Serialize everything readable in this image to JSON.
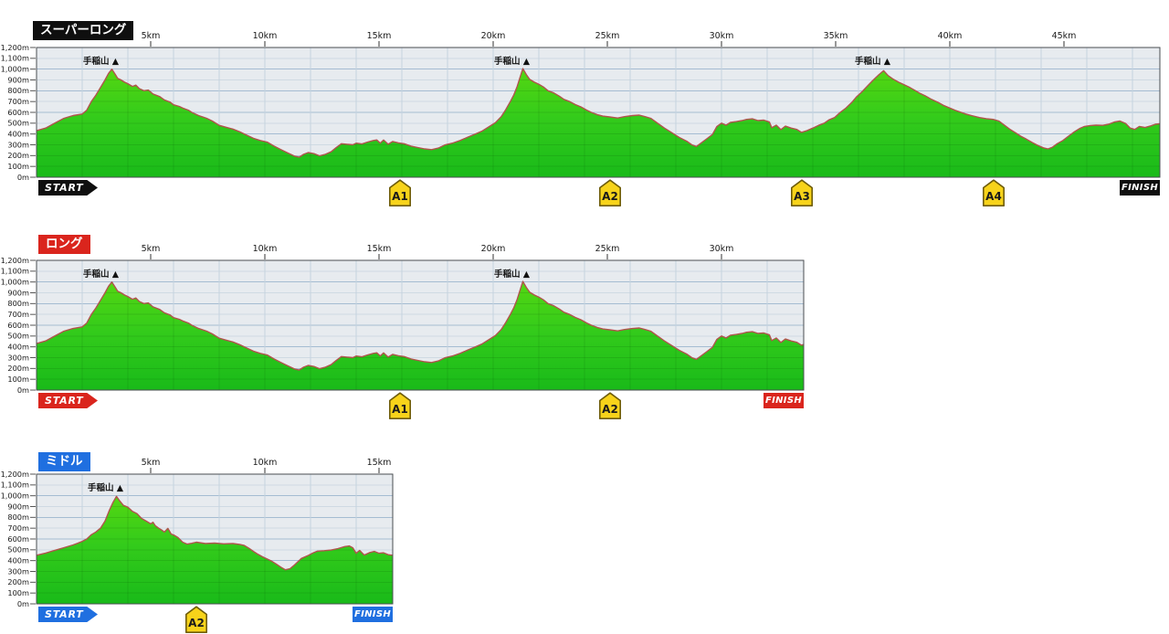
{
  "shared": {
    "start_label": "START",
    "finish_label": "FINISH",
    "y_axis_labels": [
      "1,200m",
      "1,100m",
      "1,000m",
      "900m",
      "800m",
      "700m",
      "600m",
      "500m",
      "400m",
      "300m",
      "200m",
      "100m",
      "0m"
    ],
    "y_unit": "m",
    "colors": {
      "page_bg": "#ffffff",
      "plot_bg": "#e7ebef",
      "grid_minor": "#cfdae3",
      "grid_major": "#a5bcd2",
      "grid_vertical": "#c4d3df",
      "plot_border": "#4a4e52",
      "area_top": "#62dc0e",
      "area_mid": "#33cb1b",
      "area_bottom": "#19ba19",
      "terrain_line": "#b0544c",
      "aid_fill": "#f7d31a",
      "aid_border": "#6e5c0a",
      "tick_text": "#1a1a1a"
    }
  },
  "profiles": {
    "super_long": [
      [
        0,
        430
      ],
      [
        0.4,
        455
      ],
      [
        0.8,
        500
      ],
      [
        1.2,
        545
      ],
      [
        1.6,
        570
      ],
      [
        2,
        585
      ],
      [
        2.2,
        620
      ],
      [
        2.4,
        700
      ],
      [
        2.6,
        760
      ],
      [
        2.8,
        830
      ],
      [
        3,
        900
      ],
      [
        3.15,
        960
      ],
      [
        3.3,
        1000
      ],
      [
        3.45,
        950
      ],
      [
        3.55,
        915
      ],
      [
        3.7,
        900
      ],
      [
        3.85,
        880
      ],
      [
        4,
        865
      ],
      [
        4.2,
        840
      ],
      [
        4.35,
        852
      ],
      [
        4.5,
        820
      ],
      [
        4.7,
        800
      ],
      [
        4.9,
        806
      ],
      [
        5.1,
        770
      ],
      [
        5.4,
        745
      ],
      [
        5.6,
        715
      ],
      [
        5.85,
        695
      ],
      [
        6,
        670
      ],
      [
        6.25,
        655
      ],
      [
        6.4,
        640
      ],
      [
        6.65,
        620
      ],
      [
        6.8,
        600
      ],
      [
        7.1,
        570
      ],
      [
        7.45,
        545
      ],
      [
        7.7,
        520
      ],
      [
        8,
        480
      ],
      [
        8.3,
        462
      ],
      [
        8.6,
        445
      ],
      [
        8.9,
        420
      ],
      [
        9.2,
        390
      ],
      [
        9.5,
        360
      ],
      [
        9.8,
        340
      ],
      [
        10.1,
        325
      ],
      [
        10.4,
        288
      ],
      [
        10.7,
        255
      ],
      [
        11,
        225
      ],
      [
        11.3,
        195
      ],
      [
        11.5,
        185
      ],
      [
        11.7,
        212
      ],
      [
        11.9,
        228
      ],
      [
        12.15,
        218
      ],
      [
        12.4,
        198
      ],
      [
        12.65,
        212
      ],
      [
        12.9,
        235
      ],
      [
        13.1,
        270
      ],
      [
        13.35,
        310
      ],
      [
        13.6,
        305
      ],
      [
        13.85,
        300
      ],
      [
        14,
        315
      ],
      [
        14.25,
        308
      ],
      [
        14.5,
        325
      ],
      [
        14.75,
        340
      ],
      [
        14.9,
        345
      ],
      [
        15.05,
        315
      ],
      [
        15.2,
        345
      ],
      [
        15.4,
        305
      ],
      [
        15.6,
        330
      ],
      [
        15.85,
        318
      ],
      [
        16.1,
        310
      ],
      [
        16.4,
        288
      ],
      [
        16.7,
        275
      ],
      [
        17,
        262
      ],
      [
        17.3,
        255
      ],
      [
        17.6,
        270
      ],
      [
        17.9,
        300
      ],
      [
        18.25,
        318
      ],
      [
        18.55,
        340
      ],
      [
        18.9,
        372
      ],
      [
        19.2,
        398
      ],
      [
        19.5,
        425
      ],
      [
        19.8,
        465
      ],
      [
        20.1,
        505
      ],
      [
        20.35,
        560
      ],
      [
        20.55,
        625
      ],
      [
        20.75,
        700
      ],
      [
        20.9,
        760
      ],
      [
        21.05,
        840
      ],
      [
        21.2,
        940
      ],
      [
        21.3,
        1005
      ],
      [
        21.45,
        950
      ],
      [
        21.6,
        905
      ],
      [
        21.8,
        880
      ],
      [
        22,
        860
      ],
      [
        22.2,
        835
      ],
      [
        22.4,
        800
      ],
      [
        22.65,
        780
      ],
      [
        22.9,
        750
      ],
      [
        23.1,
        720
      ],
      [
        23.35,
        700
      ],
      [
        23.6,
        672
      ],
      [
        23.85,
        650
      ],
      [
        24.1,
        620
      ],
      [
        24.3,
        600
      ],
      [
        24.55,
        580
      ],
      [
        24.8,
        565
      ],
      [
        25.1,
        558
      ],
      [
        25.45,
        548
      ],
      [
        25.75,
        560
      ],
      [
        26.1,
        570
      ],
      [
        26.4,
        575
      ],
      [
        26.65,
        560
      ],
      [
        26.9,
        545
      ],
      [
        27.2,
        500
      ],
      [
        27.5,
        455
      ],
      [
        27.85,
        408
      ],
      [
        28.15,
        368
      ],
      [
        28.5,
        330
      ],
      [
        28.7,
        300
      ],
      [
        28.9,
        285
      ],
      [
        29.1,
        315
      ],
      [
        29.35,
        355
      ],
      [
        29.6,
        395
      ],
      [
        29.8,
        470
      ],
      [
        30,
        500
      ],
      [
        30.2,
        482
      ],
      [
        30.4,
        508
      ],
      [
        30.65,
        515
      ],
      [
        30.9,
        524
      ],
      [
        31.1,
        535
      ],
      [
        31.35,
        540
      ],
      [
        31.6,
        524
      ],
      [
        31.85,
        528
      ],
      [
        32.1,
        510
      ],
      [
        32.2,
        458
      ],
      [
        32.4,
        482
      ],
      [
        32.6,
        440
      ],
      [
        32.8,
        472
      ],
      [
        33.05,
        455
      ],
      [
        33.3,
        442
      ],
      [
        33.5,
        415
      ],
      [
        33.75,
        432
      ],
      [
        34,
        455
      ],
      [
        34.25,
        480
      ],
      [
        34.5,
        500
      ],
      [
        34.7,
        530
      ],
      [
        34.95,
        552
      ],
      [
        35.2,
        600
      ],
      [
        35.45,
        640
      ],
      [
        35.7,
        690
      ],
      [
        35.9,
        740
      ],
      [
        36.15,
        790
      ],
      [
        36.4,
        845
      ],
      [
        36.65,
        900
      ],
      [
        36.9,
        950
      ],
      [
        37.1,
        985
      ],
      [
        37.3,
        940
      ],
      [
        37.5,
        910
      ],
      [
        37.75,
        880
      ],
      [
        38,
        855
      ],
      [
        38.25,
        830
      ],
      [
        38.5,
        800
      ],
      [
        38.7,
        775
      ],
      [
        38.95,
        750
      ],
      [
        39.2,
        720
      ],
      [
        39.5,
        690
      ],
      [
        39.75,
        662
      ],
      [
        40,
        640
      ],
      [
        40.25,
        618
      ],
      [
        40.5,
        600
      ],
      [
        40.7,
        585
      ],
      [
        40.95,
        570
      ],
      [
        41.3,
        552
      ],
      [
        41.6,
        542
      ],
      [
        41.9,
        535
      ],
      [
        42.15,
        520
      ],
      [
        42.4,
        480
      ],
      [
        42.65,
        440
      ],
      [
        42.9,
        408
      ],
      [
        43.1,
        380
      ],
      [
        43.35,
        352
      ],
      [
        43.6,
        322
      ],
      [
        43.85,
        295
      ],
      [
        44.1,
        272
      ],
      [
        44.3,
        262
      ],
      [
        44.5,
        278
      ],
      [
        44.7,
        310
      ],
      [
        44.95,
        340
      ],
      [
        45.2,
        380
      ],
      [
        45.45,
        420
      ],
      [
        45.7,
        452
      ],
      [
        45.9,
        470
      ],
      [
        46.15,
        478
      ],
      [
        46.4,
        482
      ],
      [
        46.7,
        480
      ],
      [
        46.95,
        490
      ],
      [
        47.2,
        510
      ],
      [
        47.45,
        520
      ],
      [
        47.7,
        498
      ],
      [
        47.9,
        455
      ],
      [
        48.1,
        442
      ],
      [
        48.3,
        470
      ],
      [
        48.55,
        460
      ],
      [
        48.8,
        475
      ],
      [
        49,
        490
      ],
      [
        49.2,
        495
      ]
    ],
    "middle": [
      [
        0,
        450
      ],
      [
        0.4,
        470
      ],
      [
        0.8,
        495
      ],
      [
        1.2,
        520
      ],
      [
        1.6,
        545
      ],
      [
        1.8,
        560
      ],
      [
        2,
        578
      ],
      [
        2.2,
        600
      ],
      [
        2.4,
        640
      ],
      [
        2.6,
        665
      ],
      [
        2.8,
        700
      ],
      [
        3,
        766
      ],
      [
        3.2,
        870
      ],
      [
        3.35,
        940
      ],
      [
        3.5,
        995
      ],
      [
        3.65,
        950
      ],
      [
        3.8,
        912
      ],
      [
        4,
        894
      ],
      [
        4.2,
        855
      ],
      [
        4.4,
        835
      ],
      [
        4.6,
        790
      ],
      [
        4.8,
        766
      ],
      [
        5,
        740
      ],
      [
        5.1,
        755
      ],
      [
        5.2,
        723
      ],
      [
        5.35,
        700
      ],
      [
        5.5,
        680
      ],
      [
        5.6,
        664
      ],
      [
        5.75,
        698
      ],
      [
        5.9,
        645
      ],
      [
        6,
        638
      ],
      [
        6.2,
        613
      ],
      [
        6.4,
        570
      ],
      [
        6.6,
        553
      ],
      [
        6.8,
        560
      ],
      [
        7,
        570
      ],
      [
        7.4,
        558
      ],
      [
        7.8,
        562
      ],
      [
        8.2,
        555
      ],
      [
        8.6,
        558
      ],
      [
        8.9,
        550
      ],
      [
        9.1,
        540
      ],
      [
        9.3,
        515
      ],
      [
        9.5,
        485
      ],
      [
        9.7,
        458
      ],
      [
        9.9,
        435
      ],
      [
        10.1,
        415
      ],
      [
        10.3,
        395
      ],
      [
        10.5,
        368
      ],
      [
        10.7,
        340
      ],
      [
        10.9,
        315
      ],
      [
        11.1,
        325
      ],
      [
        11.3,
        360
      ],
      [
        11.6,
        420
      ],
      [
        11.9,
        448
      ],
      [
        12.1,
        470
      ],
      [
        12.3,
        488
      ],
      [
        12.6,
        492
      ],
      [
        12.9,
        498
      ],
      [
        13.2,
        511
      ],
      [
        13.5,
        530
      ],
      [
        13.7,
        536
      ],
      [
        13.85,
        519
      ],
      [
        14,
        468
      ],
      [
        14.15,
        494
      ],
      [
        14.35,
        451
      ],
      [
        14.6,
        475
      ],
      [
        14.8,
        485
      ],
      [
        15,
        468
      ],
      [
        15.2,
        472
      ],
      [
        15.4,
        455
      ],
      [
        15.6,
        450
      ]
    ]
  },
  "chart_data": [
    {
      "type": "area",
      "title": "スーパーロング",
      "theme_color": "#0f0f0f",
      "length_km": 49.2,
      "y_range_m": [
        0,
        1200
      ],
      "profile_key": "super_long",
      "x_ticks": [
        {
          "km": 5,
          "label": "5km"
        },
        {
          "km": 10,
          "label": "10km"
        },
        {
          "km": 15,
          "label": "15km"
        },
        {
          "km": 20,
          "label": "20km"
        },
        {
          "km": 25,
          "label": "25km"
        },
        {
          "km": 30,
          "label": "30km"
        },
        {
          "km": 35,
          "label": "35km"
        },
        {
          "km": 40,
          "label": "40km"
        },
        {
          "km": 45,
          "label": "45km"
        }
      ],
      "aid_stations": [
        {
          "label": "A1",
          "km": 15.9
        },
        {
          "label": "A2",
          "km": 25.1
        },
        {
          "label": "A3",
          "km": 33.5
        },
        {
          "label": "A4",
          "km": 41.9
        }
      ],
      "peaks": [
        {
          "label": "手稲山 ▲",
          "km": 3.3,
          "elev_m": 1000
        },
        {
          "label": "手稲山 ▲",
          "km": 21.3,
          "elev_m": 1005
        },
        {
          "label": "手稲山 ▲",
          "km": 37.1,
          "elev_m": 985
        }
      ]
    },
    {
      "type": "area",
      "title": "ロング",
      "theme_color": "#da251d",
      "length_km": 33.6,
      "y_range_m": [
        0,
        1200
      ],
      "profile_key": "super_long",
      "x_ticks": [
        {
          "km": 5,
          "label": "5km"
        },
        {
          "km": 10,
          "label": "10km"
        },
        {
          "km": 15,
          "label": "15km"
        },
        {
          "km": 20,
          "label": "20km"
        },
        {
          "km": 25,
          "label": "25km"
        },
        {
          "km": 30,
          "label": "30km"
        }
      ],
      "aid_stations": [
        {
          "label": "A1",
          "km": 15.9
        },
        {
          "label": "A2",
          "km": 25.1
        }
      ],
      "peaks": [
        {
          "label": "手稲山 ▲",
          "km": 3.3,
          "elev_m": 1000
        },
        {
          "label": "手稲山 ▲",
          "km": 21.3,
          "elev_m": 1005
        }
      ]
    },
    {
      "type": "area",
      "title": "ミドル",
      "theme_color": "#1f6fe0",
      "length_km": 15.6,
      "y_range_m": [
        0,
        1200
      ],
      "profile_key": "middle",
      "x_ticks": [
        {
          "km": 5,
          "label": "5km"
        },
        {
          "km": 10,
          "label": "10km"
        },
        {
          "km": 15,
          "label": "15km"
        }
      ],
      "aid_stations": [
        {
          "label": "A2",
          "km": 7.0
        }
      ],
      "peaks": [
        {
          "label": "手稲山 ▲",
          "km": 3.5,
          "elev_m": 995
        }
      ]
    }
  ]
}
